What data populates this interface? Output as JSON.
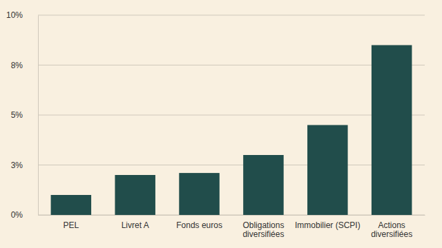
{
  "chart_data": {
    "type": "bar",
    "categories": [
      "PEL",
      "Livret A",
      "Fonds euros",
      "Obligations\ndiversifiées",
      "Immobilier (SCPI)",
      "Actions\ndiversifiées"
    ],
    "values": [
      1.0,
      2.0,
      2.1,
      3.0,
      4.5,
      8.5
    ],
    "color": "#214d4b",
    "ylim": [
      0,
      10
    ],
    "yticks": [
      {
        "value": 0,
        "label": "0%"
      },
      {
        "value": 2.5,
        "label": "3%"
      },
      {
        "value": 5,
        "label": "5%"
      },
      {
        "value": 7.5,
        "label": "8%"
      },
      {
        "value": 10,
        "label": "10%"
      }
    ],
    "grid": true
  }
}
